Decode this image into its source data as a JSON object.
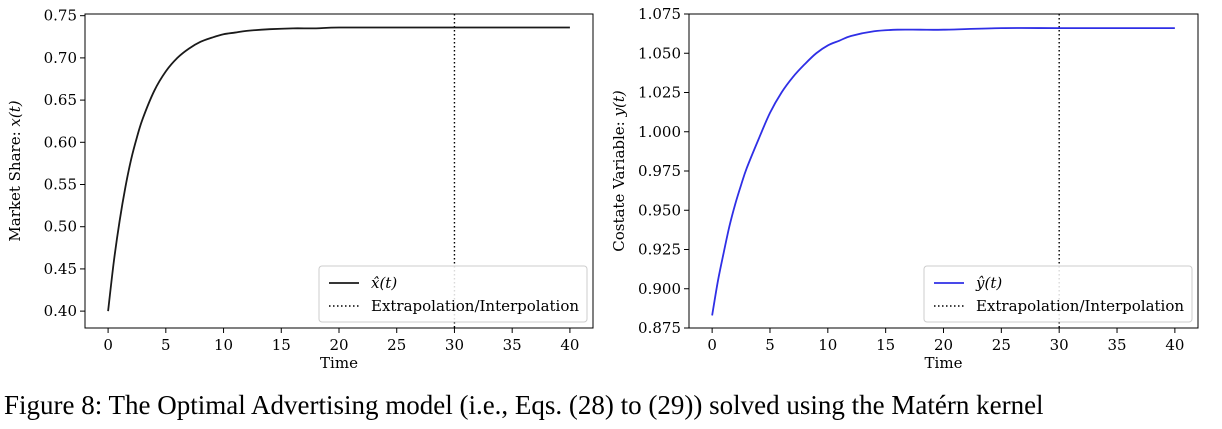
{
  "chart_data": [
    {
      "type": "line",
      "title": "",
      "xlabel": "Time",
      "ylabel": "Market Share: x(t)",
      "xlim": [
        -2,
        42
      ],
      "ylim": [
        0.38,
        0.752
      ],
      "xticks": [
        0,
        5,
        10,
        15,
        20,
        25,
        30,
        35,
        40
      ],
      "yticks": [
        0.4,
        0.45,
        0.5,
        0.55,
        0.6,
        0.65,
        0.7,
        0.75
      ],
      "ytick_labels": [
        "0.40",
        "0.45",
        "0.50",
        "0.55",
        "0.60",
        "0.65",
        "0.70",
        "0.75"
      ],
      "grid": false,
      "legend_position": "lower-right",
      "series": [
        {
          "name": "x̂(t)",
          "color": "#1a1a1a",
          "style": "solid",
          "x": [
            0,
            0.5,
            1,
            1.5,
            2,
            2.5,
            3,
            4,
            5,
            6,
            7,
            8,
            9,
            10,
            11,
            12,
            14,
            16,
            18,
            20,
            25,
            30,
            35,
            40
          ],
          "y": [
            0.4,
            0.459,
            0.507,
            0.547,
            0.58,
            0.606,
            0.628,
            0.661,
            0.684,
            0.7,
            0.711,
            0.719,
            0.724,
            0.728,
            0.73,
            0.732,
            0.734,
            0.735,
            0.735,
            0.736,
            0.736,
            0.736,
            0.736,
            0.736
          ]
        }
      ],
      "vline": {
        "name": "Extrapolation/Interpolation",
        "x": 30,
        "style": "dotted",
        "color": "#000000"
      }
    },
    {
      "type": "line",
      "title": "",
      "xlabel": "Time",
      "ylabel": "Costate Variable: y(t)",
      "xlim": [
        -2,
        42
      ],
      "ylim": [
        0.875,
        1.075
      ],
      "xticks": [
        0,
        5,
        10,
        15,
        20,
        25,
        30,
        35,
        40
      ],
      "yticks": [
        0.875,
        0.9,
        0.925,
        0.95,
        0.975,
        1.0,
        1.025,
        1.05,
        1.075
      ],
      "ytick_labels": [
        "0.875",
        "0.900",
        "0.925",
        "0.950",
        "0.975",
        "1.000",
        "1.025",
        "1.050",
        "1.075"
      ],
      "grid": false,
      "legend_position": "lower-right",
      "series": [
        {
          "name": "ŷ(t)",
          "color": "#2f2fe6",
          "style": "solid",
          "x": [
            0,
            0.5,
            1,
            1.5,
            2,
            2.5,
            3,
            4,
            5,
            6,
            7,
            8,
            9,
            10,
            11,
            12,
            14,
            16,
            18,
            20,
            25,
            30,
            35,
            40
          ],
          "y": [
            0.883,
            0.905,
            0.923,
            0.94,
            0.954,
            0.966,
            0.977,
            0.995,
            1.012,
            1.025,
            1.035,
            1.043,
            1.05,
            1.055,
            1.058,
            1.061,
            1.064,
            1.065,
            1.065,
            1.065,
            1.066,
            1.066,
            1.066,
            1.066
          ]
        }
      ],
      "vline": {
        "name": "Extrapolation/Interpolation",
        "x": 30,
        "style": "dotted",
        "color": "#000000"
      }
    }
  ],
  "caption": "Figure 8: The Optimal Advertising model (i.e., Eqs. (28) to (29)) solved using the Matérn kernel"
}
